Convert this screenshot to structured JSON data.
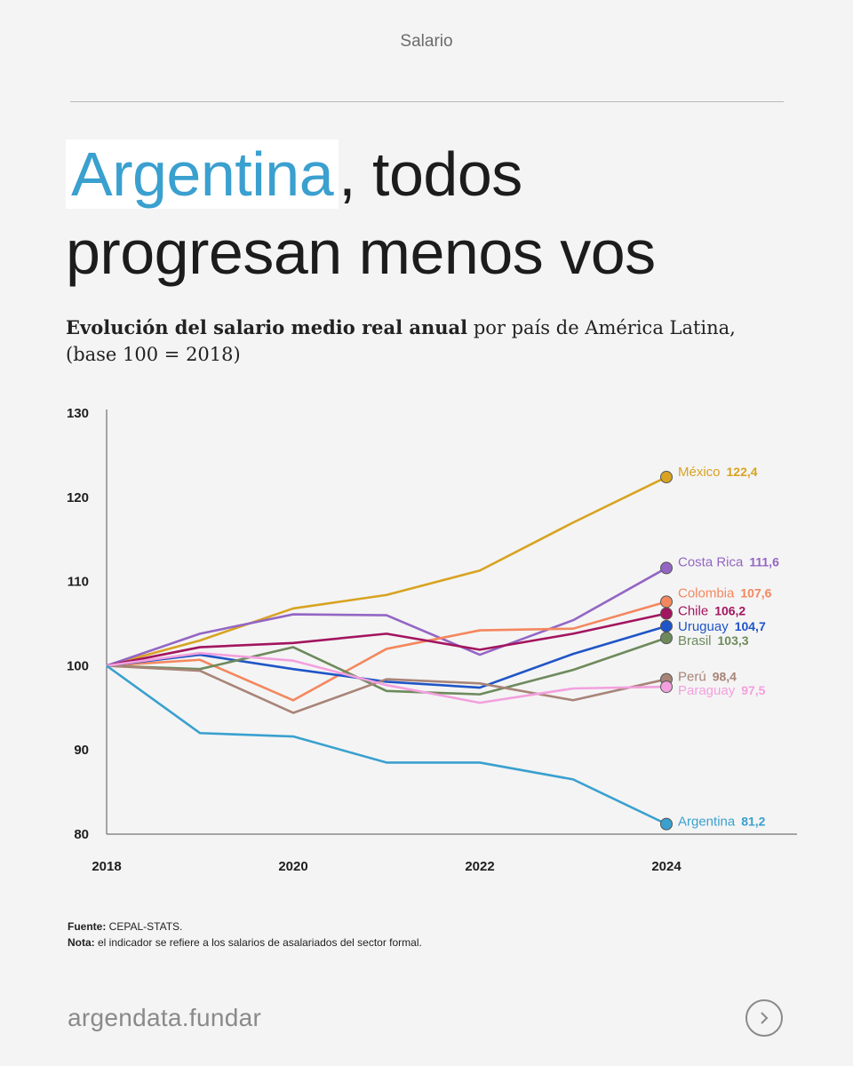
{
  "header": {
    "section": "Salario"
  },
  "headline": {
    "highlight": "Argentina",
    "rest_line1": ", todos",
    "line2": "progresan menos vos"
  },
  "subtitle": {
    "bold": "Evolución del salario medio real anual",
    "normal": " por país de América Latina,",
    "line2": "(base 100 = 2018)"
  },
  "chart_data": {
    "type": "line",
    "title": "Evolución del salario medio real anual por país de América Latina, (base 100 = 2018)",
    "xlabel": "",
    "ylabel": "",
    "x": [
      2018,
      2019,
      2020,
      2021,
      2022,
      2023,
      2024
    ],
    "xticks": [
      2018,
      2020,
      2022,
      2024
    ],
    "yticks": [
      80,
      90,
      100,
      110,
      120,
      130
    ],
    "ylim": [
      80,
      130
    ],
    "xlim": [
      2018,
      2025.4
    ],
    "series": [
      {
        "name": "México",
        "label": "122,4",
        "color": "#d8a322",
        "values": [
          100,
          103.0,
          106.8,
          108.4,
          111.3,
          117.0,
          122.4
        ]
      },
      {
        "name": "Costa Rica",
        "label": "111,6",
        "color": "#9366c4",
        "values": [
          100,
          103.8,
          106.1,
          106.0,
          101.3,
          105.4,
          111.6
        ]
      },
      {
        "name": "Colombia",
        "label": "107,6",
        "color": "#f4875e",
        "values": [
          100,
          100.7,
          95.9,
          102.0,
          104.2,
          104.4,
          107.6
        ]
      },
      {
        "name": "Chile",
        "label": "106,2",
        "color": "#a3155f",
        "values": [
          100,
          102.2,
          102.7,
          103.8,
          101.9,
          103.8,
          106.2
        ]
      },
      {
        "name": "Uruguay",
        "label": "104,7",
        "color": "#1f55c7",
        "values": [
          100,
          101.3,
          99.6,
          98.1,
          97.4,
          101.4,
          104.7
        ]
      },
      {
        "name": "Brasil",
        "label": "103,3",
        "color": "#6e8a5c",
        "values": [
          100,
          99.6,
          102.2,
          97.0,
          96.6,
          99.5,
          103.3
        ]
      },
      {
        "name": "Perú",
        "label": "98,4",
        "color": "#a88478",
        "values": [
          100,
          99.4,
          94.4,
          98.4,
          97.9,
          95.9,
          98.4
        ]
      },
      {
        "name": "Paraguay",
        "label": "97,5",
        "color": "#f3a0de",
        "values": [
          100,
          101.5,
          100.6,
          97.7,
          95.6,
          97.3,
          97.5
        ]
      },
      {
        "name": "Argentina",
        "label": "81,2",
        "color": "#3aa0cf",
        "values": [
          100,
          92.0,
          91.6,
          88.5,
          88.5,
          86.5,
          81.2
        ]
      }
    ]
  },
  "notes": {
    "source_label": "Fuente:",
    "source_text": " CEPAL-STATS.",
    "note_label": "Nota:",
    "note_text": " el indicador se refiere a los salarios de asalariados del sector formal."
  },
  "footer": {
    "brand": "argendata.fundar",
    "next_icon": "chevron-right-icon"
  }
}
